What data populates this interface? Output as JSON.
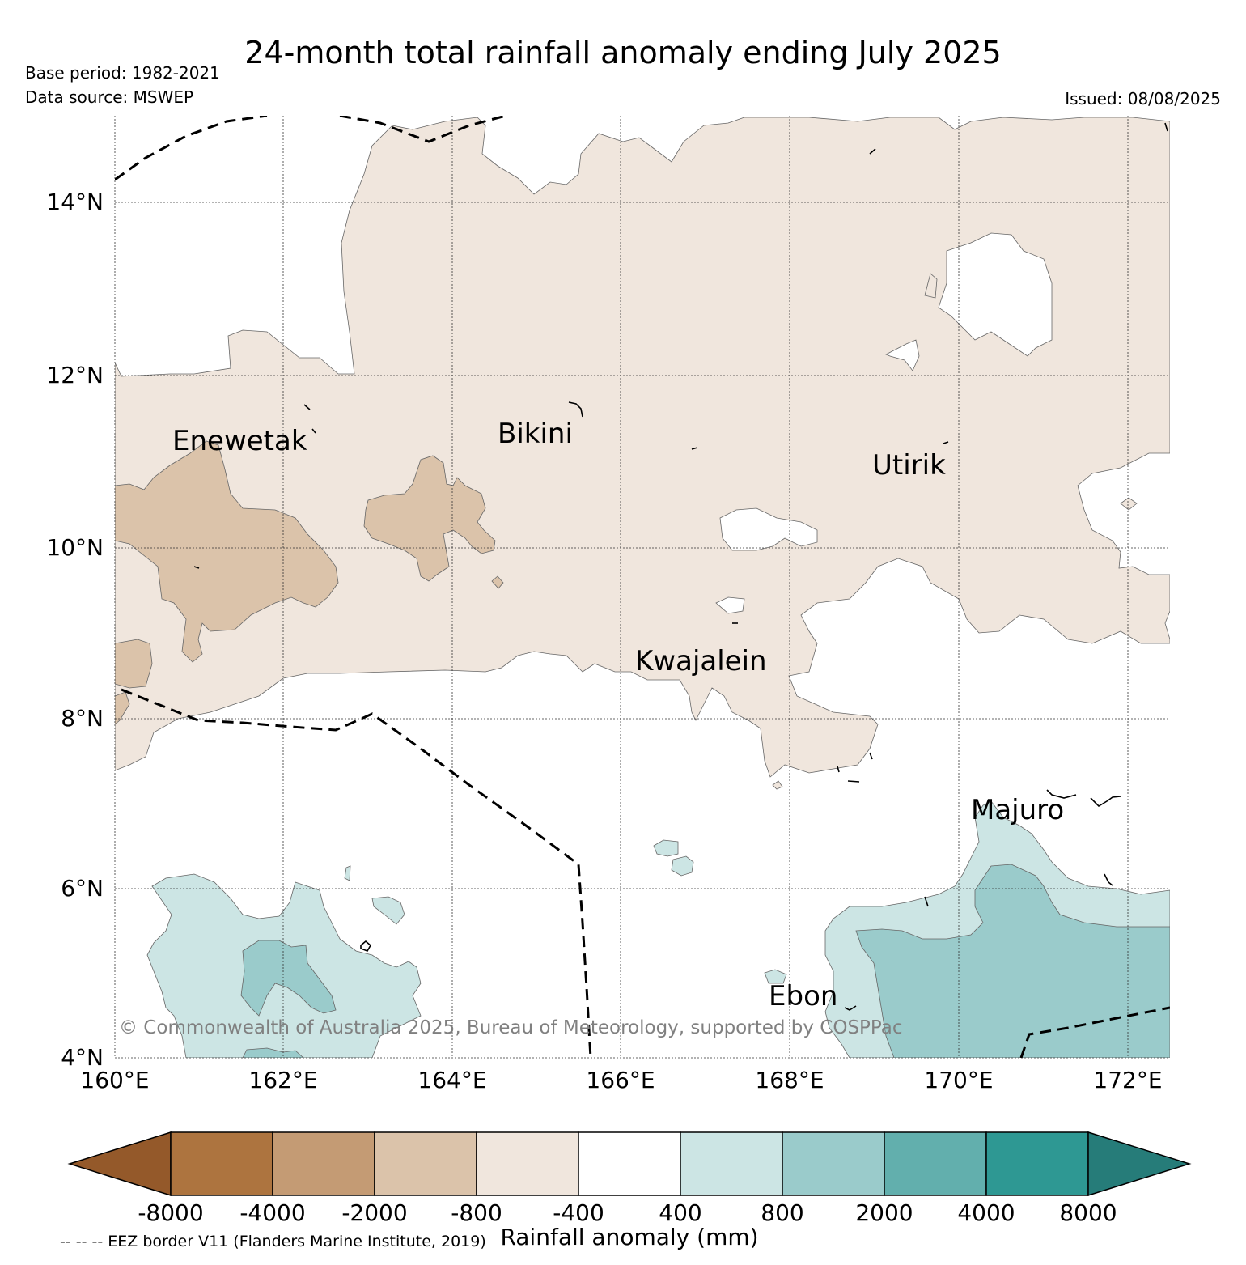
{
  "title": "24-month total rainfall anomaly ending July 2025",
  "base_period": "Base period: 1982-2021",
  "data_source": "Data source: MSWEP",
  "issued": "Issued: 08/08/2025",
  "copyright": "© Commonwealth of Australia 2025, Bureau of Meteorology, supported by COSPPac",
  "eez_note": "-- -- -- EEZ border V11 (Flanders Marine Institute, 2019)",
  "map": {
    "lon_ticks": [
      "160°E",
      "162°E",
      "164°E",
      "166°E",
      "168°E",
      "170°E",
      "172°E"
    ],
    "lat_ticks": [
      "14°N",
      "12°N",
      "10°N",
      "8°N",
      "6°N",
      "4°N"
    ],
    "places": [
      "Enewetak",
      "Bikini",
      "Utirik",
      "Kwajalein",
      "Majuro",
      "Ebon"
    ]
  },
  "colorbar": {
    "label": "Rainfall anomaly (mm)",
    "tick_labels": [
      "-8000",
      "-4000",
      "-2000",
      "-800",
      "-400",
      "400",
      "800",
      "2000",
      "4000",
      "8000"
    ],
    "colors": [
      "#94592a",
      "#ad743f",
      "#c49b74",
      "#dbc3aa",
      "#f0e6dd",
      "#ffffff",
      "#cce5e4",
      "#9acbcb",
      "#62afad",
      "#2e9893",
      "#267c79"
    ]
  }
}
